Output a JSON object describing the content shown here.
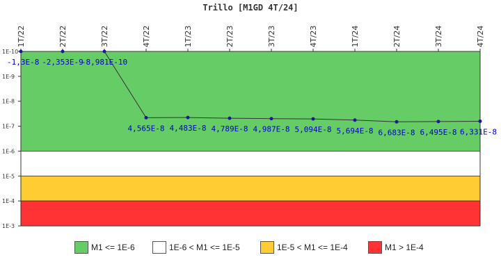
{
  "chart_data": {
    "type": "line",
    "title": "Trillo [M1GD 4T/24]",
    "y_scale": "log",
    "y_range_top_to_bottom": [
      "1E-10",
      "1E-3"
    ],
    "y_ticks": [
      "1E-10",
      "1E-9",
      "1E-8",
      "1E-7",
      "1E-6",
      "1E-5",
      "1E-4",
      "1E-3"
    ],
    "categories": [
      "1T/22",
      "2T/22",
      "3T/22",
      "4T/22",
      "1T/23",
      "2T/23",
      "3T/23",
      "4T/23",
      "1T/24",
      "2T/24",
      "3T/24",
      "4T/24"
    ],
    "series": [
      {
        "color": "#1a1a99",
        "values": [
          -1.3e-08,
          -2.353e-09,
          -8.981e-10,
          4.565e-08,
          4.483e-08,
          4.789e-08,
          4.987e-08,
          5.094e-08,
          5.694e-08,
          6.683e-08,
          6.495e-08,
          6.331e-08
        ],
        "data_labels": [
          "-1,3E-8",
          "-2,353E-9",
          "-8,981E-10",
          "4,565E-8",
          "4,483E-8",
          "4,789E-8",
          "4,987E-8",
          "5,094E-8",
          "5,694E-8",
          "6,683E-8",
          "6,495E-8",
          "6,331E-8"
        ]
      }
    ],
    "bands": [
      {
        "label": "M1 <= 1E-6",
        "color": "#66cc66",
        "from": "1E-10",
        "to": "1E-6"
      },
      {
        "label": "1E-6 < M1 <= 1E-5",
        "color": "#ffffff",
        "from": "1E-6",
        "to": "1E-5"
      },
      {
        "label": "1E-5 < M1 <= 1E-4",
        "color": "#ffcc33",
        "from": "1E-5",
        "to": "1E-4"
      },
      {
        "label": "M1 > 1E-4",
        "color": "#ff3333",
        "from": "1E-4",
        "to": "1E-3"
      }
    ],
    "legend_position": "bottom",
    "grid": false,
    "label_color": "#0000cc",
    "line_color": "#333333"
  }
}
